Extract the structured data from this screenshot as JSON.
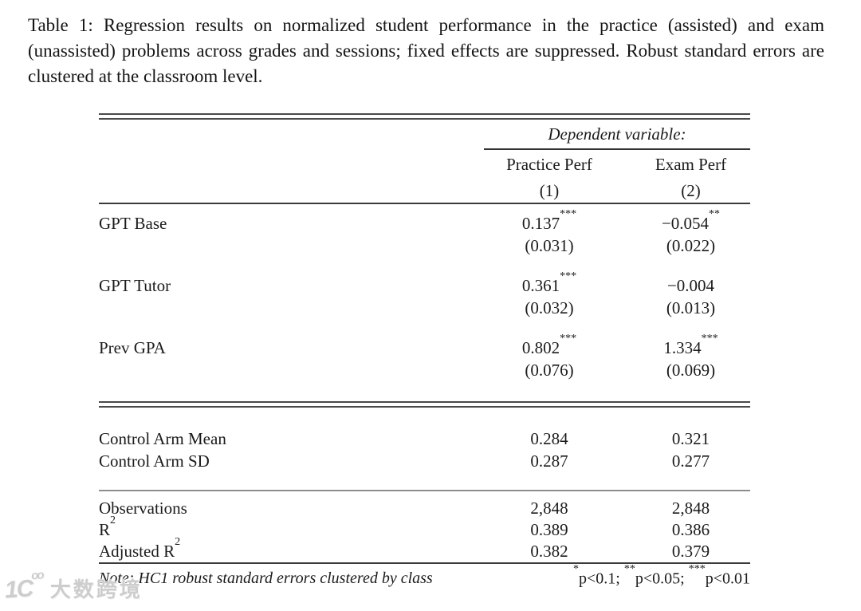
{
  "caption": "Table 1: Regression results on normalized student performance in the practice (assisted) and exam (unassisted) problems across grades and sessions; fixed effects are suppressed. Robust standard errors are clustered at the classroom level.",
  "table": {
    "dependent_variable_label": "Dependent variable:",
    "columns": [
      {
        "name": "Practice Perf",
        "number": "(1)"
      },
      {
        "name": "Exam Perf",
        "number": "(2)"
      }
    ],
    "coef_rows": [
      {
        "label": "GPT Base",
        "c1": {
          "est": "0.137",
          "stars": "***"
        },
        "c2": {
          "est": "−0.054",
          "stars": "**"
        },
        "se1": "(0.031)",
        "se2": "(0.022)"
      },
      {
        "label": "GPT Tutor",
        "c1": {
          "est": "0.361",
          "stars": "***"
        },
        "c2": {
          "est": "−0.004",
          "stars": ""
        },
        "se1": "(0.032)",
        "se2": "(0.013)"
      },
      {
        "label": "Prev GPA",
        "c1": {
          "est": "0.802",
          "stars": "***"
        },
        "c2": {
          "est": "1.334",
          "stars": "***"
        },
        "se1": "(0.076)",
        "se2": "(0.069)"
      }
    ],
    "summary_rows": [
      {
        "label": "Control Arm Mean",
        "v1": "0.284",
        "v2": "0.321"
      },
      {
        "label": "Control Arm SD",
        "v1": "0.287",
        "v2": "0.277"
      }
    ],
    "stat_rows": [
      {
        "label": "Observations",
        "sup": "",
        "v1": "2,848",
        "v2": "2,848"
      },
      {
        "label": "R",
        "sup": "2",
        "v1": "0.389",
        "v2": "0.386"
      },
      {
        "label": "Adjusted R",
        "sup": "2",
        "v1": "0.382",
        "v2": "0.379"
      }
    ],
    "note": {
      "text": "Note: HC1 robust standard errors clustered by class",
      "legend": [
        {
          "stars": "*",
          "text": "p<0.1; "
        },
        {
          "stars": "**",
          "text": "p<0.05; "
        },
        {
          "stars": "***",
          "text": "p<0.01"
        }
      ]
    }
  },
  "watermark": {
    "logo_main": "1C",
    "logo_sup": "oo",
    "text": "大数跨境"
  }
}
